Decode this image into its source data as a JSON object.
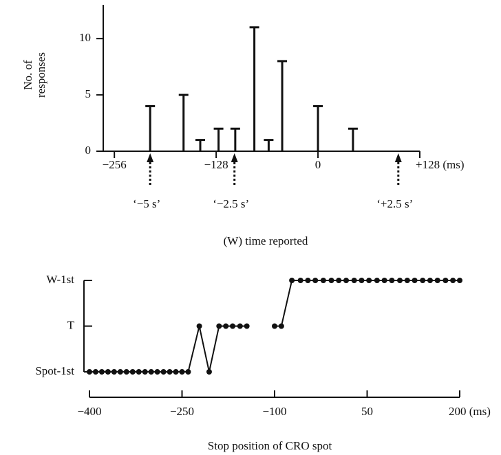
{
  "chart_data": [
    {
      "type": "needle",
      "ylabel": "No. of responses",
      "xlabel": "(W) time reported",
      "x": [
        -211,
        -169,
        -148,
        -125,
        -104,
        -80,
        -62,
        -45,
        0,
        44
      ],
      "values": [
        4,
        5,
        1,
        2,
        2,
        11,
        1,
        8,
        4,
        2
      ],
      "color": "#111111",
      "xlim": [
        -270,
        128
      ],
      "ylim": [
        0,
        13
      ],
      "xticks": [
        {
          "value": -256,
          "label": "−256"
        },
        {
          "value": -128,
          "label": "−128"
        },
        0,
        {
          "value": 128,
          "label": "+128 (ms)"
        }
      ],
      "yticks": [
        0,
        5,
        10
      ],
      "annotations": [
        {
          "label": "‘−5 s’",
          "x": -211
        },
        {
          "label": "‘−2.5 s’",
          "x": -105
        },
        {
          "label": "‘+2.5 s’",
          "x": 101
        }
      ]
    },
    {
      "type": "line",
      "xlabel": "Stop position of CRO spot",
      "x": [
        -400,
        -390,
        -380,
        -370,
        -360,
        -350,
        -340,
        -330,
        -320,
        -310,
        -300,
        -290,
        -280,
        -270,
        -260,
        -250,
        -240,
        -222,
        -206,
        -190,
        -179,
        -168,
        -156,
        -145,
        -120,
        -100,
        -89,
        -72,
        -58,
        -46,
        -34,
        -21,
        -8,
        4,
        16,
        29,
        41,
        53,
        66,
        78,
        90,
        103,
        115,
        127,
        140,
        152,
        164,
        177,
        189,
        200
      ],
      "values": [
        0,
        0,
        0,
        0,
        0,
        0,
        0,
        0,
        0,
        0,
        0,
        0,
        0,
        0,
        0,
        0,
        0,
        1,
        0,
        1,
        1,
        1,
        1,
        1,
        null,
        1,
        1,
        2,
        2,
        2,
        2,
        2,
        2,
        2,
        2,
        2,
        2,
        2,
        2,
        2,
        2,
        2,
        2,
        2,
        2,
        2,
        2,
        2,
        2,
        2
      ],
      "color": "#111111",
      "xlim": [
        -400,
        200
      ],
      "ylim": [
        0,
        2
      ],
      "xticks": [
        {
          "value": -400,
          "label": "−400"
        },
        {
          "value": -250,
          "label": "−250"
        },
        {
          "value": -100,
          "label": "−100"
        },
        50,
        {
          "value": 200,
          "label": "200 (ms)"
        }
      ],
      "yticks": [
        {
          "value": 0,
          "label": "Spot-1st"
        },
        {
          "value": 1,
          "label": "T"
        },
        {
          "value": 2,
          "label": "W-1st"
        }
      ]
    }
  ]
}
